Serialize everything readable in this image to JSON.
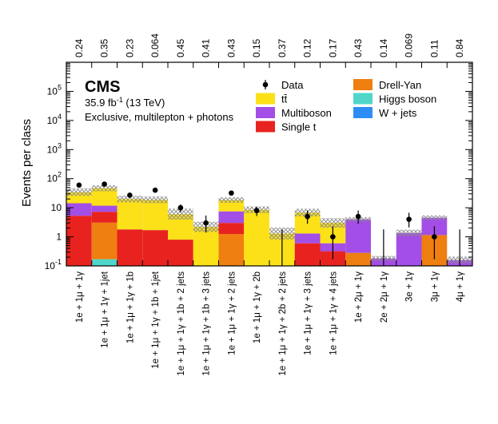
{
  "chart_data": {
    "type": "bar",
    "stacked": true,
    "ylabel": "Events per class",
    "yscale": "log",
    "ylim": [
      0.1,
      1000000
    ],
    "y_tick_labels": [
      {
        "base": "10",
        "exp": "-1",
        "value": 0.1
      },
      {
        "base": "1",
        "exp": "",
        "value": 1
      },
      {
        "base": "10",
        "exp": "",
        "value": 10
      },
      {
        "base": "10",
        "exp": "2",
        "value": 100
      },
      {
        "base": "10",
        "exp": "3",
        "value": 1000
      },
      {
        "base": "10",
        "exp": "4",
        "value": 10000
      },
      {
        "base": "10",
        "exp": "5",
        "value": 100000
      }
    ],
    "categories": [
      "1e + 1μ + 1γ",
      "1e + 1μ + 1γ + 1jet",
      "1e + 1μ + 1γ + 1b",
      "1e + 1μ + 1γ + 1b + 1jet",
      "1e + 1μ + 1γ + 1b + 2 jets",
      "1e + 1μ + 1γ + 1b + 3 jets",
      "1e + 1μ + 1γ + 2 jets",
      "1e + 1μ + 1γ + 2b",
      "1e + 1μ + 1γ + 2b + 2 jets",
      "1e + 1μ + 1γ + 3 jets",
      "1e + 1μ + 1γ + 4 jets",
      "1e + 2μ + 1γ",
      "2e + 2μ + 1γ",
      "3e + 1γ",
      "3μ + 1γ",
      "4μ + 1γ"
    ],
    "p_values": [
      "0.24",
      "0.35",
      "0.23",
      "0.064",
      "0.45",
      "0.41",
      "0.43",
      "0.15",
      "0.37",
      "0.12",
      "0.17",
      "0.43",
      "0.14",
      "0.069",
      "0.11",
      "0.84"
    ],
    "series": [
      {
        "name": "Higgs boson",
        "color": "#4fd6c8",
        "values": [
          0,
          0.17,
          0,
          0,
          0,
          0,
          0,
          0,
          0,
          0,
          0,
          0,
          0,
          0,
          0,
          0
        ]
      },
      {
        "name": "Drell-Yan",
        "color": "#ee7f10",
        "values": [
          0,
          2.9,
          0,
          0,
          0,
          0,
          1.25,
          0,
          0,
          0,
          0,
          0.28,
          0,
          0,
          1.15,
          0
        ]
      },
      {
        "name": "Single t",
        "color": "#e8231f",
        "values": [
          5.3,
          4.2,
          1.8,
          1.7,
          0.8,
          0,
          1.75,
          0,
          0,
          0.6,
          0.32,
          0,
          0,
          0,
          0,
          0
        ]
      },
      {
        "name": "Multiboson",
        "color": "#a34ee6",
        "values": [
          9,
          4.5,
          0,
          0,
          0,
          0,
          4.5,
          0,
          0,
          0.7,
          0.28,
          3.7,
          0.18,
          1.35,
          3.4,
          0.16
        ]
      },
      {
        "name": "W + jets",
        "color": "#2e8df5",
        "values": [
          0,
          0,
          0,
          0,
          0,
          0,
          0,
          0,
          0,
          0,
          0,
          0,
          0,
          0,
          0,
          0
        ]
      },
      {
        "name": "tt̄",
        "color": "#fce119",
        "values": [
          20,
          35,
          18,
          17,
          5.2,
          2.2,
          11,
          8.5,
          1.3,
          5.5,
          2.4,
          0,
          0,
          0,
          0,
          0
        ]
      }
    ],
    "uncertainty": [
      1.35,
      1.27,
      1.3,
      1.3,
      1.55,
      1.5,
      1.25,
      1.3,
      1.6,
      1.35,
      1.45,
      1.2,
      1.22,
      1.3,
      1.2,
      1.3
    ],
    "data": [
      {
        "value": 60,
        "err_lo": 8,
        "err_hi": 8
      },
      {
        "value": 65,
        "err_lo": 8,
        "err_hi": 8
      },
      {
        "value": 27,
        "err_lo": 5,
        "err_hi": 5
      },
      {
        "value": 40,
        "err_lo": 6,
        "err_hi": 6
      },
      {
        "value": 10,
        "err_lo": 3,
        "err_hi": 3
      },
      {
        "value": 3,
        "err_lo": 1.6,
        "err_hi": 2.4
      },
      {
        "value": 32,
        "err_lo": 5.5,
        "err_hi": 5.5
      },
      {
        "value": 8,
        "err_lo": 2.8,
        "err_hi": 2.8
      },
      {
        "value": null,
        "err_lo": 0,
        "err_hi": 1.8
      },
      {
        "value": 5,
        "err_lo": 2.2,
        "err_hi": 3
      },
      {
        "value": 1,
        "err_lo": 0.83,
        "err_hi": 1.3
      },
      {
        "value": 5,
        "err_lo": 2.2,
        "err_hi": 3
      },
      {
        "value": null,
        "err_lo": 0,
        "err_hi": 1.8
      },
      {
        "value": 4,
        "err_lo": 1.9,
        "err_hi": 2.7
      },
      {
        "value": 1,
        "err_lo": 0.83,
        "err_hi": 1.3
      },
      {
        "value": null,
        "err_lo": 0,
        "err_hi": 1.8
      }
    ],
    "legend": {
      "position": "top-right",
      "columns": [
        [
          {
            "name": "Data",
            "kind": "marker"
          },
          {
            "name": "tt̄",
            "kind": "fill",
            "color": "#fce119"
          },
          {
            "name": "Multiboson",
            "kind": "fill",
            "color": "#a34ee6"
          },
          {
            "name": "Single t",
            "kind": "fill",
            "color": "#e8231f"
          }
        ],
        [
          {
            "name": "Drell-Yan",
            "kind": "fill",
            "color": "#ee7f10"
          },
          {
            "name": "Higgs boson",
            "kind": "fill",
            "color": "#4fd6c8"
          },
          {
            "name": "W + jets",
            "kind": "fill",
            "color": "#2e8df5"
          }
        ]
      ]
    },
    "annotations": {
      "experiment": "CMS",
      "lumi_value": "35.9 fb",
      "lumi_exp": "-1",
      "lumi_energy": " (13 TeV)",
      "selection": "Exclusive, multilepton + photons"
    }
  }
}
